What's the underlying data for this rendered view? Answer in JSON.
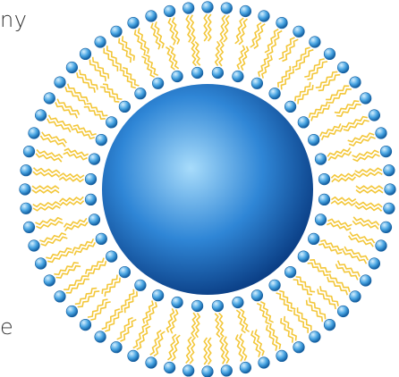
{
  "text_fragments": {
    "top": "ny",
    "bottom": "e"
  },
  "diagram": {
    "subject": "liposome-bilayer",
    "colors": {
      "core_center": "#a8dcfb",
      "core_mid": "#2f86d6",
      "core_edge": "#0b3f86",
      "head_light": "#d6f0ff",
      "head_mid": "#4aa6e3",
      "head_dark": "#115c9e",
      "tail": "#f3c73a",
      "tail_stroke": "#d9a91c"
    },
    "outer_layer_count": 60,
    "inner_layer_count": 36
  }
}
